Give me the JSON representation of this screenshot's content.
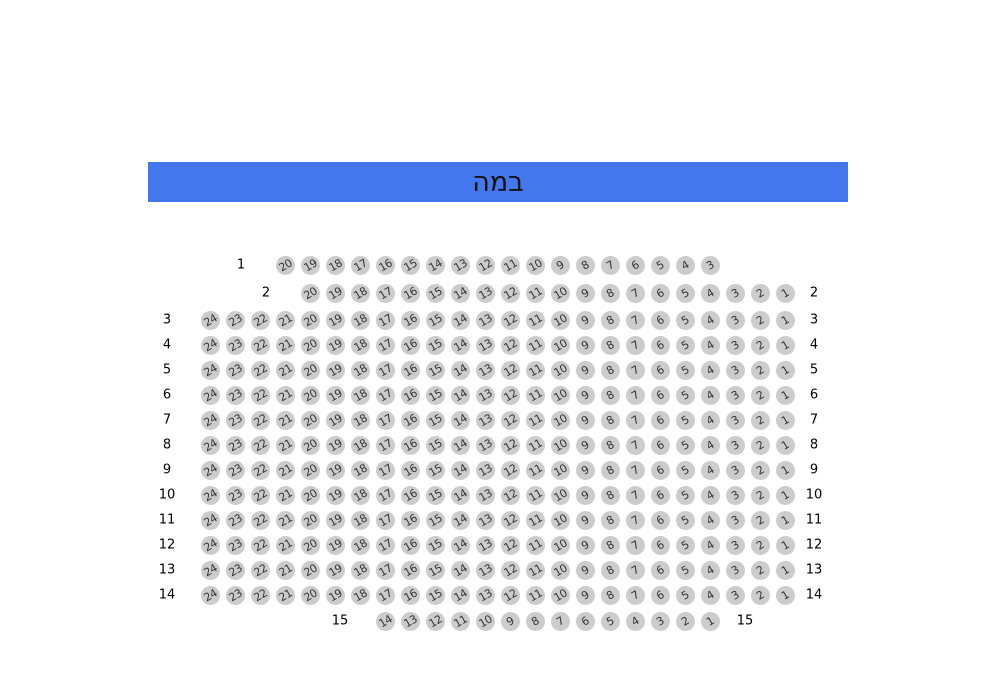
{
  "stage": {
    "label": "במה",
    "color": "#4477ee"
  },
  "seat_color": "#cccccc",
  "rows": [
    {
      "label": "1",
      "label_left": true,
      "label_right": false,
      "seats": [
        20,
        19,
        18,
        17,
        16,
        15,
        14,
        13,
        12,
        11,
        10,
        9,
        8,
        7,
        6,
        5,
        4,
        3
      ]
    },
    {
      "label": "2",
      "label_left": true,
      "label_right": true,
      "seats": [
        20,
        19,
        18,
        17,
        16,
        15,
        14,
        13,
        12,
        11,
        10,
        9,
        8,
        7,
        6,
        5,
        4,
        3,
        2,
        1
      ]
    },
    {
      "label": "3",
      "label_left": true,
      "label_right": true,
      "seats": [
        24,
        23,
        22,
        21,
        20,
        19,
        18,
        17,
        16,
        15,
        14,
        13,
        12,
        11,
        10,
        9,
        8,
        7,
        6,
        5,
        4,
        3,
        2,
        1
      ]
    },
    {
      "label": "4",
      "label_left": true,
      "label_right": true,
      "seats": [
        24,
        23,
        22,
        21,
        20,
        19,
        18,
        17,
        16,
        15,
        14,
        13,
        12,
        11,
        10,
        9,
        8,
        7,
        6,
        5,
        4,
        3,
        2,
        1
      ]
    },
    {
      "label": "5",
      "label_left": true,
      "label_right": true,
      "seats": [
        24,
        23,
        22,
        21,
        20,
        19,
        18,
        17,
        16,
        15,
        14,
        13,
        12,
        11,
        10,
        9,
        8,
        7,
        6,
        5,
        4,
        3,
        2,
        1
      ]
    },
    {
      "label": "6",
      "label_left": true,
      "label_right": true,
      "seats": [
        24,
        23,
        22,
        21,
        20,
        19,
        18,
        17,
        16,
        15,
        14,
        13,
        12,
        11,
        10,
        9,
        8,
        7,
        6,
        5,
        4,
        3,
        2,
        1
      ]
    },
    {
      "label": "7",
      "label_left": true,
      "label_right": true,
      "seats": [
        24,
        23,
        22,
        21,
        20,
        19,
        18,
        17,
        16,
        15,
        14,
        13,
        12,
        11,
        10,
        9,
        8,
        7,
        6,
        5,
        4,
        3,
        2,
        1
      ]
    },
    {
      "label": "8",
      "label_left": true,
      "label_right": true,
      "seats": [
        24,
        23,
        22,
        21,
        20,
        19,
        18,
        17,
        16,
        15,
        14,
        13,
        12,
        11,
        10,
        9,
        8,
        7,
        6,
        5,
        4,
        3,
        2,
        1
      ]
    },
    {
      "label": "9",
      "label_left": true,
      "label_right": true,
      "seats": [
        24,
        23,
        22,
        21,
        20,
        19,
        18,
        17,
        16,
        15,
        14,
        13,
        12,
        11,
        10,
        9,
        8,
        7,
        6,
        5,
        4,
        3,
        2,
        1
      ]
    },
    {
      "label": "10",
      "label_left": true,
      "label_right": true,
      "seats": [
        24,
        23,
        22,
        21,
        20,
        19,
        18,
        17,
        16,
        15,
        14,
        13,
        12,
        11,
        10,
        9,
        8,
        7,
        6,
        5,
        4,
        3,
        2,
        1
      ]
    },
    {
      "label": "11",
      "label_left": true,
      "label_right": true,
      "seats": [
        24,
        23,
        22,
        21,
        20,
        19,
        18,
        17,
        16,
        15,
        14,
        13,
        12,
        11,
        10,
        9,
        8,
        7,
        6,
        5,
        4,
        3,
        2,
        1
      ]
    },
    {
      "label": "12",
      "label_left": true,
      "label_right": true,
      "seats": [
        24,
        23,
        22,
        21,
        20,
        19,
        18,
        17,
        16,
        15,
        14,
        13,
        12,
        11,
        10,
        9,
        8,
        7,
        6,
        5,
        4,
        3,
        2,
        1
      ]
    },
    {
      "label": "13",
      "label_left": true,
      "label_right": true,
      "seats": [
        24,
        23,
        22,
        21,
        20,
        19,
        18,
        17,
        16,
        15,
        14,
        13,
        12,
        11,
        10,
        9,
        8,
        7,
        6,
        5,
        4,
        3,
        2,
        1
      ]
    },
    {
      "label": "14",
      "label_left": true,
      "label_right": true,
      "seats": [
        24,
        23,
        22,
        21,
        20,
        19,
        18,
        17,
        16,
        15,
        14,
        13,
        12,
        11,
        10,
        9,
        8,
        7,
        6,
        5,
        4,
        3,
        2,
        1
      ]
    },
    {
      "label": "15",
      "label_left": true,
      "label_right": true,
      "seats": [
        14,
        13,
        12,
        11,
        10,
        9,
        8,
        7,
        6,
        5,
        4,
        3,
        2,
        1
      ]
    }
  ]
}
